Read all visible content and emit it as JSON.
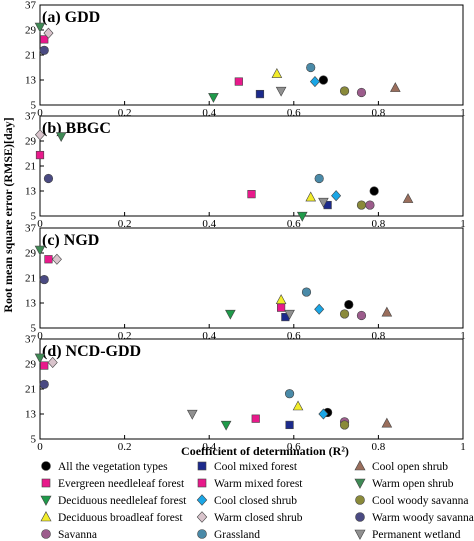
{
  "chart_data": {
    "type": "scatter",
    "xlabel": "Coefficient of determination (R²)",
    "ylabel": "Root mean square error (RMSE)[day]",
    "xlim": [
      0,
      1
    ],
    "ylim": [
      5,
      37
    ],
    "xticks": [
      "0",
      "0.2",
      "0.4",
      "0.6",
      "0.8",
      "1"
    ],
    "yticks": [
      "5",
      "13",
      "21",
      "29",
      "37"
    ],
    "grid": false,
    "legend_position": "bottom",
    "categories": [
      {
        "id": "all",
        "name": "All the vegetation types",
        "marker": "circle",
        "color": "#000000"
      },
      {
        "id": "enf",
        "name": "Evergreen needleleaf forest",
        "marker": "square",
        "color": "#e8198b"
      },
      {
        "id": "dnf",
        "name": "Deciduous needleleaf forest",
        "marker": "triangle-down",
        "color": "#1f9a4a"
      },
      {
        "id": "dbf",
        "name": "Deciduous broadleaf forest",
        "marker": "triangle-up",
        "color": "#f2ec2a"
      },
      {
        "id": "sav",
        "name": "Savanna",
        "marker": "circle",
        "color": "#9c5c8c"
      },
      {
        "id": "cmf",
        "name": "Cool mixed forest",
        "marker": "square",
        "color": "#1c2a8c"
      },
      {
        "id": "wmf",
        "name": "Warm mixed forest",
        "marker": "square",
        "color": "#e8198b"
      },
      {
        "id": "ccs",
        "name": "Cool closed shrub",
        "marker": "diamond",
        "color": "#1aa6e6"
      },
      {
        "id": "wcs",
        "name": "Warm closed shrub",
        "marker": "diamond",
        "color": "#d9c4cc"
      },
      {
        "id": "grass",
        "name": "Grassland",
        "marker": "circle",
        "color": "#4a8aa8"
      },
      {
        "id": "cos",
        "name": "Cool open shrub",
        "marker": "triangle-up",
        "color": "#9a6e5c"
      },
      {
        "id": "wos",
        "name": "Warm open shrub",
        "marker": "triangle-down",
        "color": "#3f8a55"
      },
      {
        "id": "cws",
        "name": "Cool woody savanna",
        "marker": "circle",
        "color": "#8a8a3a"
      },
      {
        "id": "wws",
        "name": "Warm woody savanna",
        "marker": "circle",
        "color": "#4a4a82"
      },
      {
        "id": "pw",
        "name": "Permanent wetland",
        "marker": "triangle-down",
        "color": "#909090"
      }
    ],
    "panels": [
      {
        "title": "(a) GDD",
        "points": [
          {
            "cat": "all",
            "x": 0.67,
            "y": 13
          },
          {
            "cat": "enf",
            "x": 0.01,
            "y": 26
          },
          {
            "cat": "dnf",
            "x": 0.41,
            "y": 7.5
          },
          {
            "cat": "dbf",
            "x": 0.56,
            "y": 15
          },
          {
            "cat": "sav",
            "x": 0.76,
            "y": 9
          },
          {
            "cat": "cmf",
            "x": 0.52,
            "y": 8.5
          },
          {
            "cat": "wmf",
            "x": 0.47,
            "y": 12.5
          },
          {
            "cat": "ccs",
            "x": 0.65,
            "y": 12.5
          },
          {
            "cat": "wcs",
            "x": 0.02,
            "y": 28
          },
          {
            "cat": "grass",
            "x": 0.64,
            "y": 17
          },
          {
            "cat": "cos",
            "x": 0.84,
            "y": 10.5
          },
          {
            "cat": "wos",
            "x": 0.0,
            "y": 30
          },
          {
            "cat": "cws",
            "x": 0.72,
            "y": 9.5
          },
          {
            "cat": "wws",
            "x": 0.01,
            "y": 22.5
          },
          {
            "cat": "pw",
            "x": 0.57,
            "y": 9.5
          }
        ]
      },
      {
        "title": "(b) BBGC",
        "points": [
          {
            "cat": "all",
            "x": 0.79,
            "y": 13
          },
          {
            "cat": "enf",
            "x": 0.0,
            "y": 24.5
          },
          {
            "cat": "dnf",
            "x": 0.62,
            "y": 5
          },
          {
            "cat": "dbf",
            "x": 0.64,
            "y": 11
          },
          {
            "cat": "sav",
            "x": 0.78,
            "y": 8.5
          },
          {
            "cat": "cmf",
            "x": 0.68,
            "y": 8.5
          },
          {
            "cat": "wmf",
            "x": 0.5,
            "y": 12
          },
          {
            "cat": "ccs",
            "x": 0.7,
            "y": 11.5
          },
          {
            "cat": "wcs",
            "x": 0.0,
            "y": 31
          },
          {
            "cat": "grass",
            "x": 0.66,
            "y": 17
          },
          {
            "cat": "cos",
            "x": 0.87,
            "y": 10.5
          },
          {
            "cat": "wos",
            "x": 0.05,
            "y": 30.5
          },
          {
            "cat": "cws",
            "x": 0.76,
            "y": 8.5
          },
          {
            "cat": "wws",
            "x": 0.02,
            "y": 17
          },
          {
            "cat": "pw",
            "x": 0.67,
            "y": 9.5
          }
        ]
      },
      {
        "title": "(c) NGD",
        "points": [
          {
            "cat": "all",
            "x": 0.73,
            "y": 12.5
          },
          {
            "cat": "enf",
            "x": 0.02,
            "y": 27
          },
          {
            "cat": "dnf",
            "x": 0.45,
            "y": 9.5
          },
          {
            "cat": "dbf",
            "x": 0.57,
            "y": 14
          },
          {
            "cat": "sav",
            "x": 0.76,
            "y": 9
          },
          {
            "cat": "cmf",
            "x": 0.58,
            "y": 8.5
          },
          {
            "cat": "wmf",
            "x": 0.57,
            "y": 11.5
          },
          {
            "cat": "ccs",
            "x": 0.66,
            "y": 11
          },
          {
            "cat": "wcs",
            "x": 0.04,
            "y": 27
          },
          {
            "cat": "grass",
            "x": 0.63,
            "y": 16.5
          },
          {
            "cat": "cos",
            "x": 0.82,
            "y": 10
          },
          {
            "cat": "wos",
            "x": 0.0,
            "y": 30
          },
          {
            "cat": "cws",
            "x": 0.72,
            "y": 9.5
          },
          {
            "cat": "wws",
            "x": 0.01,
            "y": 20.5
          },
          {
            "cat": "pw",
            "x": 0.59,
            "y": 9.5
          }
        ]
      },
      {
        "title": "(d) NCD-GDD",
        "points": [
          {
            "cat": "all",
            "x": 0.68,
            "y": 13.5
          },
          {
            "cat": "enf",
            "x": 0.01,
            "y": 28.5
          },
          {
            "cat": "dnf",
            "x": 0.44,
            "y": 9.5
          },
          {
            "cat": "dbf",
            "x": 0.61,
            "y": 15.5
          },
          {
            "cat": "sav",
            "x": 0.72,
            "y": 10.5
          },
          {
            "cat": "cmf",
            "x": 0.59,
            "y": 9.5
          },
          {
            "cat": "wmf",
            "x": 0.51,
            "y": 11.5
          },
          {
            "cat": "ccs",
            "x": 0.67,
            "y": 13
          },
          {
            "cat": "wcs",
            "x": 0.03,
            "y": 29.5
          },
          {
            "cat": "grass",
            "x": 0.59,
            "y": 19.5
          },
          {
            "cat": "cos",
            "x": 0.82,
            "y": 10
          },
          {
            "cat": "wos",
            "x": 0.0,
            "y": 31
          },
          {
            "cat": "cws",
            "x": 0.72,
            "y": 9.5
          },
          {
            "cat": "wws",
            "x": 0.01,
            "y": 22.5
          },
          {
            "cat": "pw",
            "x": 0.36,
            "y": 13
          }
        ]
      }
    ]
  }
}
